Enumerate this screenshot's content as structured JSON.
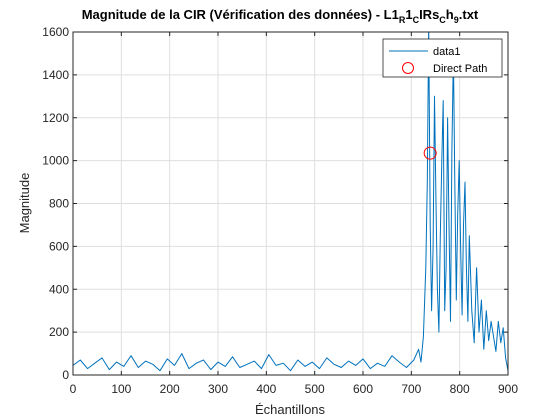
{
  "colors": {
    "series": "#0072BD",
    "marker": "#FF0000",
    "grid": "#DFDFDF",
    "axis": "#262626"
  },
  "chart_data": {
    "type": "line",
    "title": {
      "main": "Magnitude de la CIR (Vérification des données) - L1",
      "s1": "R",
      "m1": "1",
      "s2": "C",
      "m2": "IRs",
      "s3": "C",
      "m3": "h",
      "s4": "9",
      "end": ".txt"
    },
    "xlabel": "Échantillons",
    "ylabel": "Magnitude",
    "xlim": [
      0,
      900
    ],
    "ylim": [
      0,
      1600
    ],
    "xticks": [
      0,
      100,
      200,
      300,
      400,
      500,
      600,
      700,
      800,
      900
    ],
    "yticks": [
      0,
      200,
      400,
      600,
      800,
      1000,
      1200,
      1400,
      1600
    ],
    "xtick_labels": [
      "0",
      "100",
      "200",
      "300",
      "400",
      "500",
      "600",
      "700",
      "800",
      "900"
    ],
    "ytick_labels": [
      "0",
      "200",
      "400",
      "600",
      "800",
      "1000",
      "1200",
      "1400",
      "1600"
    ],
    "grid": true,
    "legend": {
      "position": "top-right",
      "entries": [
        "data1",
        "Direct Path"
      ]
    },
    "series": [
      {
        "name": "data1",
        "marker": "none",
        "x": [
          0,
          15,
          30,
          45,
          60,
          75,
          90,
          105,
          120,
          135,
          150,
          165,
          180,
          195,
          210,
          225,
          240,
          255,
          270,
          285,
          300,
          315,
          330,
          345,
          360,
          375,
          390,
          405,
          420,
          435,
          450,
          465,
          480,
          495,
          510,
          525,
          540,
          555,
          570,
          585,
          600,
          615,
          630,
          645,
          660,
          675,
          690,
          705,
          715,
          720,
          725,
          730,
          733,
          736,
          739,
          742,
          745,
          748,
          751,
          754,
          757,
          760,
          763,
          766,
          769,
          772,
          775,
          778,
          781,
          784,
          787,
          790,
          793,
          796,
          799,
          802,
          805,
          808,
          811,
          814,
          817,
          820,
          825,
          830,
          835,
          840,
          845,
          850,
          855,
          860,
          865,
          870,
          875,
          880,
          885,
          890,
          895,
          900
        ],
        "y": [
          45,
          70,
          30,
          55,
          80,
          25,
          60,
          40,
          90,
          35,
          65,
          50,
          20,
          75,
          45,
          100,
          30,
          55,
          70,
          25,
          60,
          40,
          85,
          35,
          50,
          65,
          30,
          95,
          45,
          55,
          20,
          70,
          40,
          60,
          30,
          80,
          50,
          35,
          65,
          45,
          75,
          30,
          55,
          40,
          90,
          60,
          35,
          70,
          120,
          60,
          180,
          500,
          900,
          1640,
          700,
          300,
          600,
          1300,
          800,
          400,
          200,
          650,
          1000,
          1280,
          300,
          500,
          1200,
          700,
          250,
          1050,
          1500,
          900,
          350,
          750,
          1000,
          600,
          280,
          700,
          900,
          500,
          250,
          650,
          300,
          150,
          500,
          200,
          350,
          120,
          300,
          160,
          250,
          180,
          110,
          250,
          150,
          220,
          80,
          20
        ]
      },
      {
        "name": "Direct Path",
        "marker": "circle",
        "x": [
          739
        ],
        "y": [
          1035
        ]
      }
    ]
  }
}
